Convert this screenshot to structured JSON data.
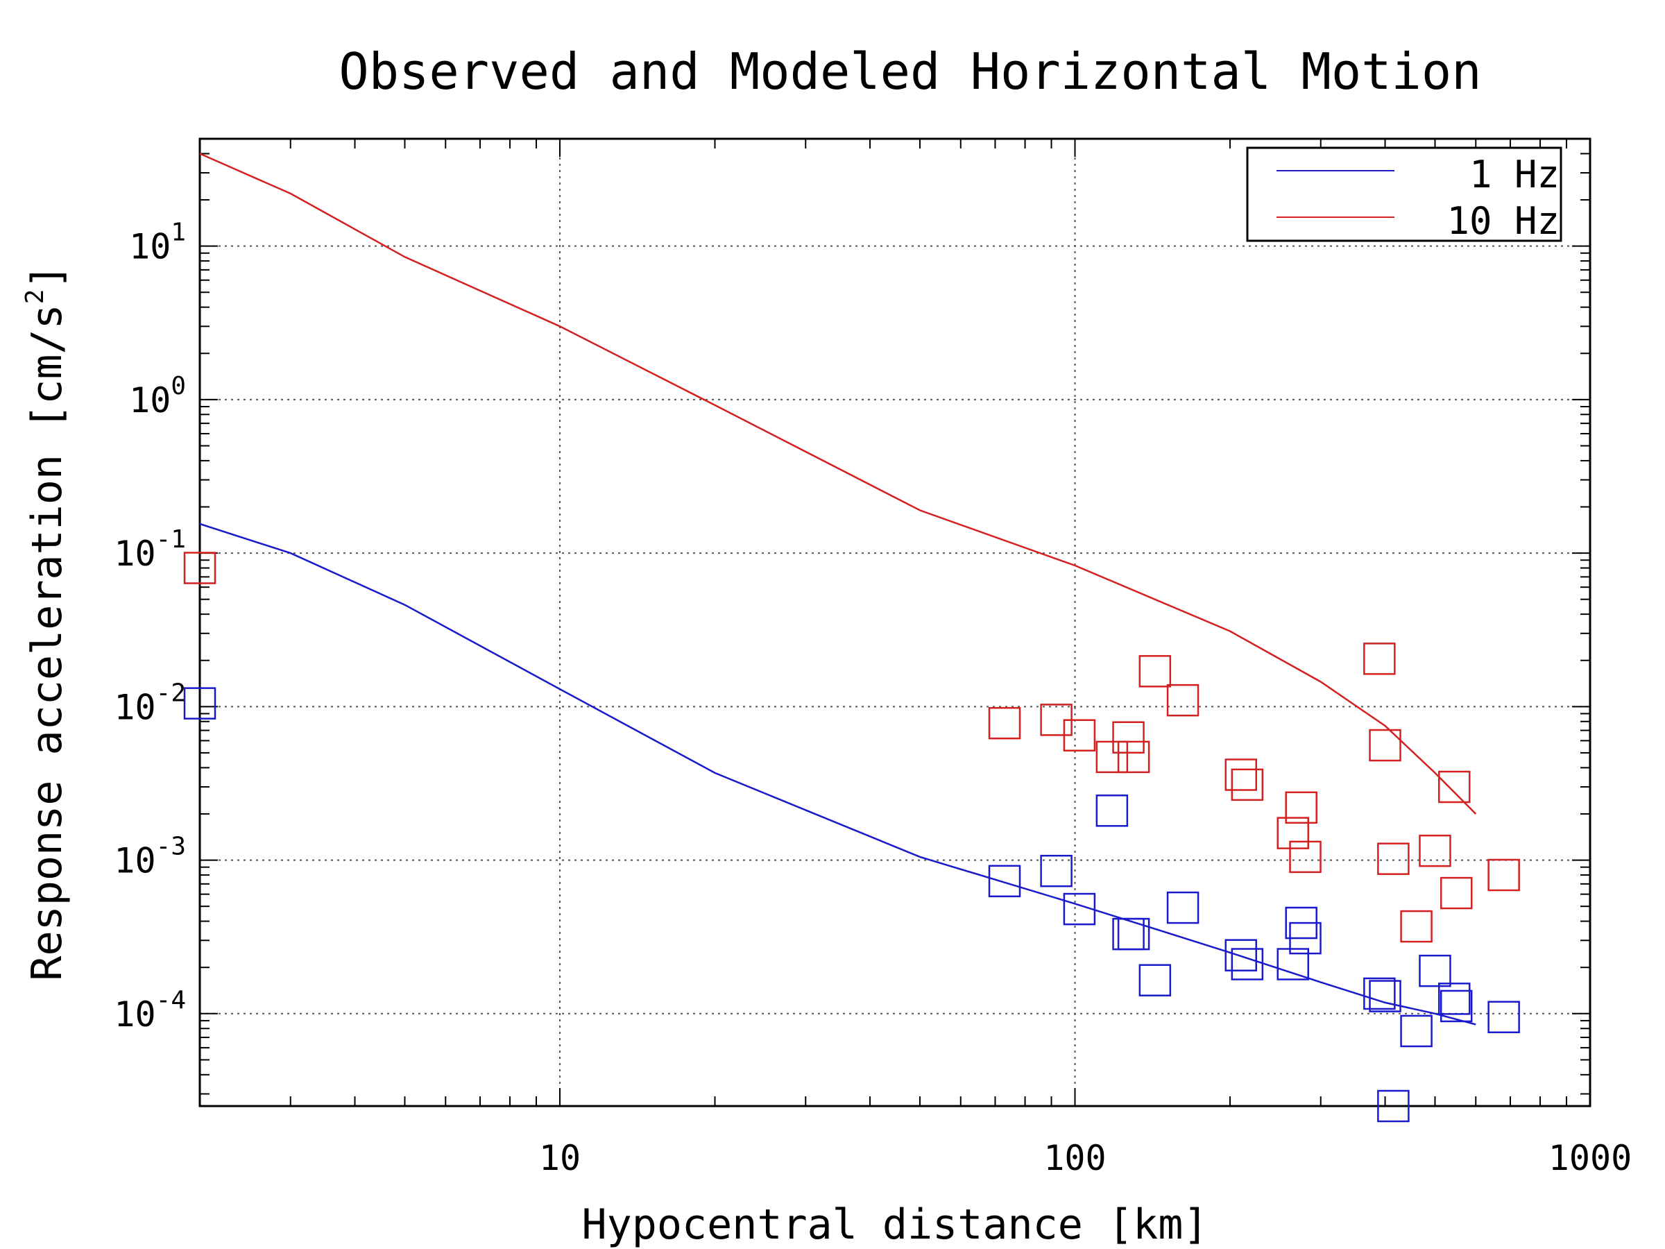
{
  "chart_data": {
    "type": "scatter",
    "title": "Observed and Modeled Horizontal Motion",
    "xlabel": "Hypocentral distance [km]",
    "ylabel_main": "Response acceleration [cm/s",
    "ylabel_sup": "2",
    "ylabel_end": "]",
    "xscale": "log",
    "yscale": "log",
    "xlim": [
      2,
      1000
    ],
    "ylim": [
      2.5e-05,
      50
    ],
    "grid": true,
    "legend_position": "top-right",
    "x_ticks": [
      {
        "value": 10,
        "label": "10"
      },
      {
        "value": 100,
        "label": "100"
      },
      {
        "value": 1000,
        "label": "1000"
      }
    ],
    "y_ticks": [
      {
        "value": 0.0001,
        "base": "10",
        "exp": "-4"
      },
      {
        "value": 0.001,
        "base": "10",
        "exp": "-3"
      },
      {
        "value": 0.01,
        "base": "10",
        "exp": "-2"
      },
      {
        "value": 0.1,
        "base": "10",
        "exp": "-1"
      },
      {
        "value": 1,
        "base": "10",
        "exp": "0"
      },
      {
        "value": 10,
        "base": "10",
        "exp": "1"
      }
    ],
    "series": [
      {
        "name": "1 Hz",
        "color": "#1a1acc",
        "model_x": [
          2,
          3,
          5,
          10,
          20,
          50,
          100,
          200,
          300,
          400,
          500,
          600
        ],
        "model_y": [
          0.155,
          0.1,
          0.046,
          0.013,
          0.0037,
          0.00105,
          0.00052,
          0.00025,
          0.00016,
          0.000118,
          0.0001,
          8.5e-05
        ],
        "observed": [
          [
            2,
            0.0105
          ],
          [
            73,
            0.00073
          ],
          [
            92,
            0.00085
          ],
          [
            102,
            0.00048
          ],
          [
            118,
            0.0021
          ],
          [
            127,
            0.00033
          ],
          [
            130,
            0.00033
          ],
          [
            143,
            0.000165
          ],
          [
            162,
            0.00049
          ],
          [
            210,
            0.00024
          ],
          [
            216,
            0.00021
          ],
          [
            265,
            0.00021
          ],
          [
            275,
            0.00039
          ],
          [
            280,
            0.00031
          ],
          [
            390,
            0.000135
          ],
          [
            400,
            0.00013
          ],
          [
            415,
            2.5e-05
          ],
          [
            460,
            7.7e-05
          ],
          [
            500,
            0.00019
          ],
          [
            545,
            0.000125
          ],
          [
            550,
            0.000112
          ],
          [
            680,
            9.5e-05
          ]
        ]
      },
      {
        "name": "10 Hz",
        "color": "#d42020",
        "model_x": [
          2,
          3,
          5,
          10,
          20,
          50,
          100,
          200,
          300,
          400,
          500,
          600
        ],
        "model_y": [
          40,
          22,
          8.5,
          3.0,
          0.92,
          0.19,
          0.083,
          0.031,
          0.0145,
          0.0075,
          0.0037,
          0.002
        ],
        "observed": [
          [
            2,
            0.08
          ],
          [
            73,
            0.0078
          ],
          [
            92,
            0.0082
          ],
          [
            102,
            0.0065
          ],
          [
            118,
            0.0047
          ],
          [
            127,
            0.0063
          ],
          [
            130,
            0.0047
          ],
          [
            143,
            0.017
          ],
          [
            162,
            0.011
          ],
          [
            210,
            0.0036
          ],
          [
            216,
            0.0031
          ],
          [
            265,
            0.0015
          ],
          [
            275,
            0.0022
          ],
          [
            280,
            0.00105
          ],
          [
            390,
            0.0205
          ],
          [
            400,
            0.0056
          ],
          [
            415,
            0.00102
          ],
          [
            460,
            0.00037
          ],
          [
            500,
            0.00115
          ],
          [
            545,
            0.003
          ],
          [
            550,
            0.00061
          ],
          [
            680,
            0.0008
          ]
        ]
      }
    ]
  }
}
